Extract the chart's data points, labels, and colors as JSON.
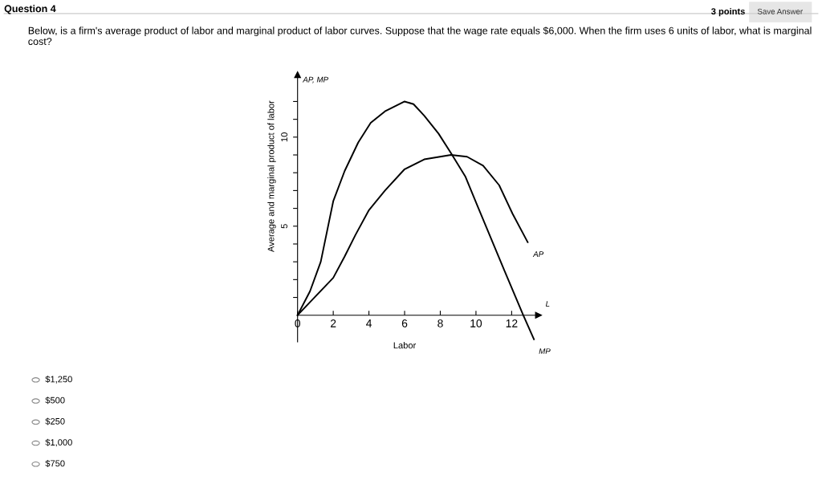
{
  "chart_data": {
    "type": "line",
    "title": "Question 4",
    "subtitle": "Below, is a firm's average product of labor and marginal product of labor curves. Suppose that the wage rate equals $6,000. When the firm uses 6 units of labor, what is marginal cost?",
    "xlabel": "Labor",
    "ylabel": "Average and marginal product of labor",
    "xlim": [
      0,
      13.5
    ],
    "ylim": [
      -1.5,
      13.5
    ],
    "xticks": [
      0,
      2,
      4,
      6,
      8,
      10,
      12
    ],
    "yticks": [
      {
        "value": 1,
        "label": null
      },
      {
        "value": 2,
        "label": null
      },
      {
        "value": 3,
        "label": null
      },
      {
        "value": 4,
        "label": null
      },
      5,
      {
        "value": 6,
        "label": null
      },
      {
        "value": 7,
        "label": null
      },
      {
        "value": 8,
        "label": null
      },
      {
        "value": 9,
        "label": null
      },
      10,
      {
        "value": 11,
        "label": null
      },
      {
        "value": 12,
        "label": null
      }
    ],
    "grid": false,
    "legend": false,
    "marker": "none",
    "line_style": "solid",
    "series": [
      {
        "name": "AP",
        "color": "#000000",
        "x": [
          0,
          2,
          2.64,
          3.24,
          4,
          4.9,
          6,
          7.1,
          8.6,
          9.5,
          10.4,
          11.3,
          12.05,
          12.9
        ],
        "values": [
          0,
          2.1,
          3.3,
          4.5,
          5.9,
          7.0,
          8.2,
          8.75,
          9.0,
          8.9,
          8.4,
          7.3,
          5.7,
          4.1
        ]
      },
      {
        "name": "MP",
        "color": "#000000",
        "x": [
          0,
          0.7,
          1.3,
          2,
          2.64,
          3.4,
          4.1,
          4.9,
          6,
          6.5,
          7.1,
          7.9,
          8.6,
          9.4,
          10.1,
          10.85,
          11.6,
          12.65,
          13.25
        ],
        "values": [
          0,
          1.35,
          3.0,
          6.4,
          8.1,
          9.7,
          10.8,
          11.45,
          12.0,
          11.85,
          11.2,
          10.2,
          9.1,
          7.8,
          6.1,
          4.3,
          2.5,
          0,
          -1.35
        ]
      }
    ],
    "annotations": [
      "3 points",
      "Save Answer",
      "AP, MP",
      "L",
      "$1,250",
      "$500",
      "$250",
      "$1,000",
      "$750"
    ]
  }
}
